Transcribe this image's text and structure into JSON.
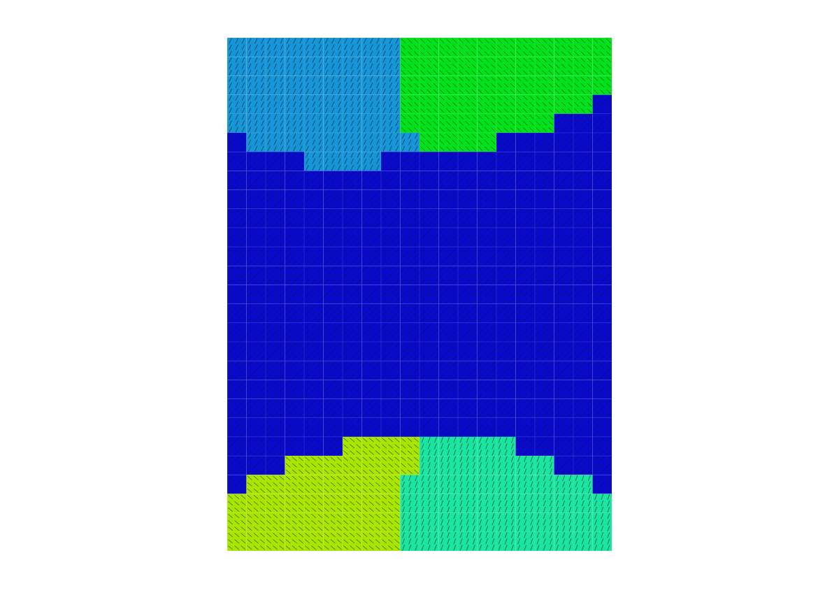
{
  "chart_data": {
    "type": "heatmap",
    "tick_labels": false,
    "colors": [
      "#0a0acc",
      "#1696d8",
      "#00e21c",
      "#a8e600",
      "#19e6a0"
    ],
    "angles": [
      45,
      65,
      135,
      140,
      70
    ],
    "cells": [
      [
        1,
        1,
        1,
        1,
        1,
        1,
        1,
        1,
        1,
        2,
        2,
        2,
        2,
        2,
        2,
        2,
        2,
        2,
        2,
        2
      ],
      [
        1,
        1,
        1,
        1,
        1,
        1,
        1,
        1,
        1,
        2,
        2,
        2,
        2,
        2,
        2,
        2,
        2,
        2,
        2,
        2
      ],
      [
        1,
        1,
        1,
        1,
        1,
        1,
        1,
        1,
        1,
        2,
        2,
        2,
        2,
        2,
        2,
        2,
        2,
        2,
        2,
        2
      ],
      [
        1,
        1,
        1,
        1,
        1,
        1,
        1,
        1,
        1,
        2,
        2,
        2,
        2,
        2,
        2,
        2,
        2,
        2,
        2,
        0
      ],
      [
        1,
        1,
        1,
        1,
        1,
        1,
        1,
        1,
        1,
        2,
        2,
        2,
        2,
        2,
        2,
        2,
        2,
        0,
        0,
        0
      ],
      [
        0,
        1,
        1,
        1,
        1,
        1,
        1,
        1,
        1,
        1,
        2,
        2,
        2,
        2,
        0,
        0,
        0,
        0,
        0,
        0
      ],
      [
        0,
        0,
        0,
        0,
        1,
        1,
        1,
        1,
        0,
        0,
        0,
        0,
        0,
        0,
        0,
        0,
        0,
        0,
        0,
        0
      ],
      [
        0,
        0,
        0,
        0,
        0,
        0,
        0,
        0,
        0,
        0,
        0,
        0,
        0,
        0,
        0,
        0,
        0,
        0,
        0,
        0
      ],
      [
        0,
        0,
        0,
        0,
        0,
        0,
        0,
        0,
        0,
        0,
        0,
        0,
        0,
        0,
        0,
        0,
        0,
        0,
        0,
        0
      ],
      [
        0,
        0,
        0,
        0,
        0,
        0,
        0,
        0,
        0,
        0,
        0,
        0,
        0,
        0,
        0,
        0,
        0,
        0,
        0,
        0
      ],
      [
        0,
        0,
        0,
        0,
        0,
        0,
        0,
        0,
        0,
        0,
        0,
        0,
        0,
        0,
        0,
        0,
        0,
        0,
        0,
        0
      ],
      [
        0,
        0,
        0,
        0,
        0,
        0,
        0,
        0,
        0,
        0,
        0,
        0,
        0,
        0,
        0,
        0,
        0,
        0,
        0,
        0
      ],
      [
        0,
        0,
        0,
        0,
        0,
        0,
        0,
        0,
        0,
        0,
        0,
        0,
        0,
        0,
        0,
        0,
        0,
        0,
        0,
        0
      ],
      [
        0,
        0,
        0,
        0,
        0,
        0,
        0,
        0,
        0,
        0,
        0,
        0,
        0,
        0,
        0,
        0,
        0,
        0,
        0,
        0
      ],
      [
        0,
        0,
        0,
        0,
        0,
        0,
        0,
        0,
        0,
        0,
        0,
        0,
        0,
        0,
        0,
        0,
        0,
        0,
        0,
        0
      ],
      [
        0,
        0,
        0,
        0,
        0,
        0,
        0,
        0,
        0,
        0,
        0,
        0,
        0,
        0,
        0,
        0,
        0,
        0,
        0,
        0
      ],
      [
        0,
        0,
        0,
        0,
        0,
        0,
        0,
        0,
        0,
        0,
        0,
        0,
        0,
        0,
        0,
        0,
        0,
        0,
        0,
        0
      ],
      [
        0,
        0,
        0,
        0,
        0,
        0,
        0,
        0,
        0,
        0,
        0,
        0,
        0,
        0,
        0,
        0,
        0,
        0,
        0,
        0
      ],
      [
        0,
        0,
        0,
        0,
        0,
        0,
        0,
        0,
        0,
        0,
        0,
        0,
        0,
        0,
        0,
        0,
        0,
        0,
        0,
        0
      ],
      [
        0,
        0,
        0,
        0,
        0,
        0,
        0,
        0,
        0,
        0,
        0,
        0,
        0,
        0,
        0,
        0,
        0,
        0,
        0,
        0
      ],
      [
        0,
        0,
        0,
        0,
        0,
        0,
        0,
        0,
        0,
        0,
        0,
        0,
        0,
        0,
        0,
        0,
        0,
        0,
        0,
        0
      ],
      [
        0,
        0,
        0,
        0,
        0,
        0,
        3,
        3,
        3,
        3,
        4,
        4,
        4,
        4,
        4,
        0,
        0,
        0,
        0,
        0
      ],
      [
        0,
        0,
        0,
        3,
        3,
        3,
        3,
        3,
        3,
        3,
        4,
        4,
        4,
        4,
        4,
        4,
        4,
        0,
        0,
        0
      ],
      [
        0,
        3,
        3,
        3,
        3,
        3,
        3,
        3,
        3,
        4,
        4,
        4,
        4,
        4,
        4,
        4,
        4,
        4,
        4,
        0
      ],
      [
        3,
        3,
        3,
        3,
        3,
        3,
        3,
        3,
        3,
        4,
        4,
        4,
        4,
        4,
        4,
        4,
        4,
        4,
        4,
        4
      ],
      [
        3,
        3,
        3,
        3,
        3,
        3,
        3,
        3,
        3,
        4,
        4,
        4,
        4,
        4,
        4,
        4,
        4,
        4,
        4,
        4
      ],
      [
        3,
        3,
        3,
        3,
        3,
        3,
        3,
        3,
        3,
        4,
        4,
        4,
        4,
        4,
        4,
        4,
        4,
        4,
        4,
        4
      ]
    ]
  }
}
